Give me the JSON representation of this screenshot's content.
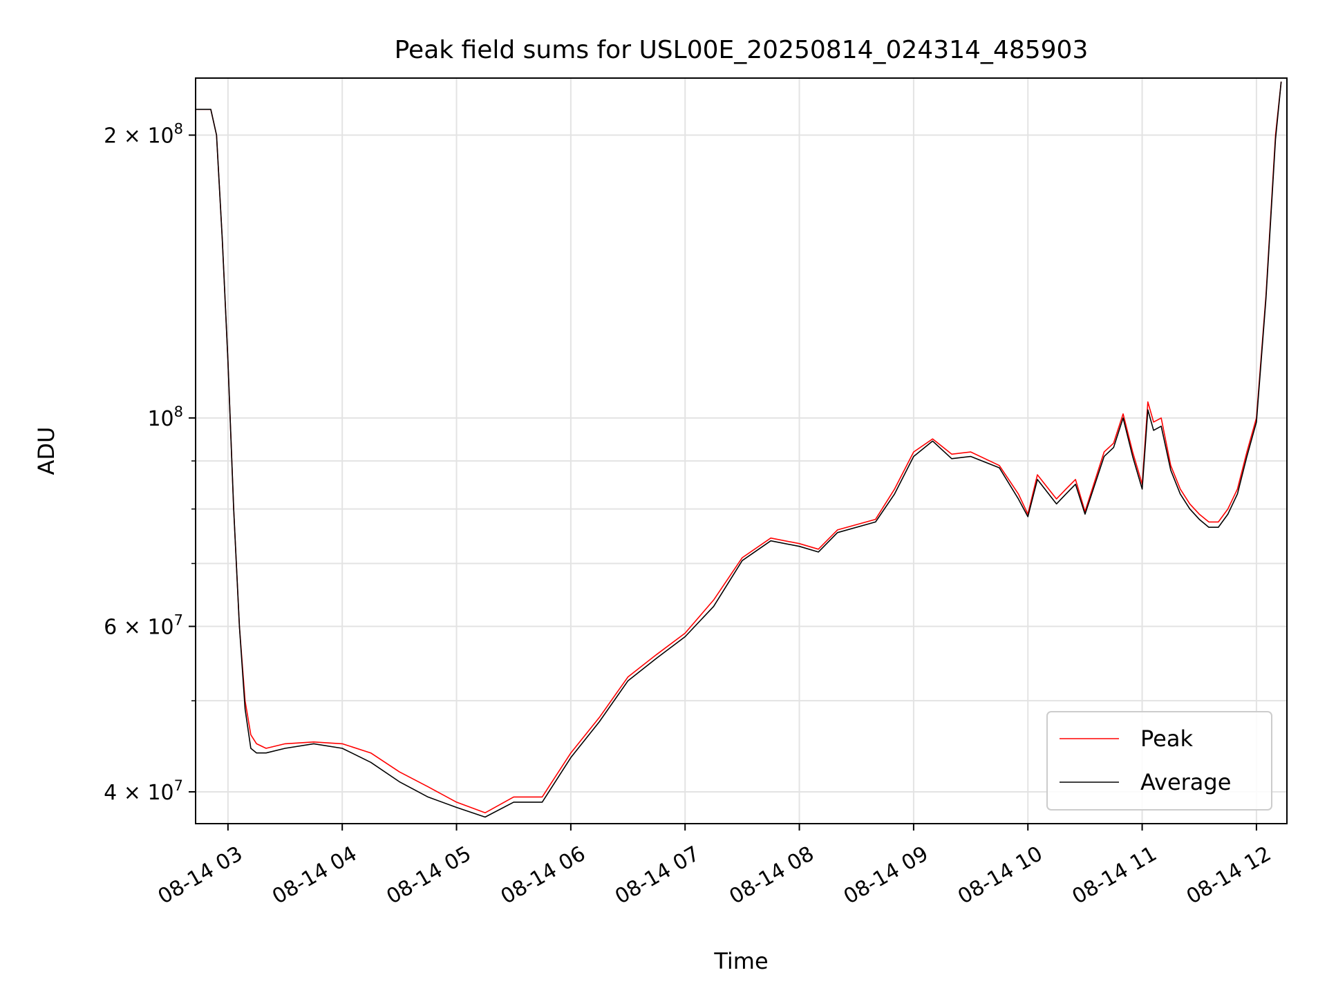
{
  "chart_data": {
    "type": "line",
    "title": "Peak field sums for USL00E_20250814_024314_485903",
    "xlabel": "Time",
    "ylabel": "ADU",
    "x_start": "08-14 02:43",
    "x_end": "08-14 12:16",
    "xlim": [
      "08-14 02:43",
      "08-14 12:16"
    ],
    "ylim": [
      37000000,
      230000000
    ],
    "yscale": "log",
    "grid": true,
    "legend_position": "lower right",
    "x_ticks": [
      "08-14 03",
      "08-14 04",
      "08-14 05",
      "08-14 06",
      "08-14 07",
      "08-14 08",
      "08-14 09",
      "08-14 10",
      "08-14 11",
      "08-14 12"
    ],
    "y_major_ticks": [
      {
        "value": 40000000,
        "mantissa": "4",
        "exponent": "7"
      },
      {
        "value": 60000000,
        "mantissa": "6",
        "exponent": "7"
      },
      {
        "value": 100000000,
        "mantissa": "",
        "exponent": "8"
      },
      {
        "value": 200000000,
        "mantissa": "2",
        "exponent": "8"
      }
    ],
    "y_minor_ticks": [
      50000000,
      70000000,
      80000000,
      90000000
    ],
    "x": [
      "08-14 02:43",
      "08-14 02:51",
      "08-14 02:54",
      "08-14 02:57",
      "08-14 03:00",
      "08-14 03:03",
      "08-14 03:06",
      "08-14 03:09",
      "08-14 03:12",
      "08-14 03:15",
      "08-14 03:20",
      "08-14 03:30",
      "08-14 03:45",
      "08-14 04:00",
      "08-14 04:15",
      "08-14 04:30",
      "08-14 04:45",
      "08-14 05:00",
      "08-14 05:15",
      "08-14 05:30",
      "08-14 05:45",
      "08-14 06:00",
      "08-14 06:15",
      "08-14 06:30",
      "08-14 06:45",
      "08-14 07:00",
      "08-14 07:15",
      "08-14 07:30",
      "08-14 07:45",
      "08-14 08:00",
      "08-14 08:10",
      "08-14 08:20",
      "08-14 08:40",
      "08-14 08:50",
      "08-14 09:00",
      "08-14 09:10",
      "08-14 09:20",
      "08-14 09:30",
      "08-14 09:45",
      "08-14 09:55",
      "08-14 10:00",
      "08-14 10:05",
      "08-14 10:15",
      "08-14 10:20",
      "08-14 10:25",
      "08-14 10:30",
      "08-14 10:40",
      "08-14 10:45",
      "08-14 10:50",
      "08-14 10:55",
      "08-14 11:00",
      "08-14 11:03",
      "08-14 11:06",
      "08-14 11:10",
      "08-14 11:15",
      "08-14 11:20",
      "08-14 11:25",
      "08-14 11:30",
      "08-14 11:35",
      "08-14 11:40",
      "08-14 11:45",
      "08-14 11:50",
      "08-14 11:55",
      "08-14 12:00",
      "08-14 12:05",
      "08-14 12:10",
      "08-14 12:13"
    ],
    "series": [
      {
        "name": "Peak",
        "color": "#ff0000",
        "values": [
          213000000,
          213000000,
          200000000,
          155000000,
          115000000,
          80000000,
          60000000,
          50000000,
          46000000,
          45000000,
          44500000,
          45000000,
          45200000,
          45000000,
          44000000,
          42000000,
          40500000,
          39000000,
          38000000,
          39500000,
          39500000,
          44000000,
          48000000,
          53000000,
          56000000,
          59000000,
          64000000,
          71000000,
          74500000,
          73500000,
          72500000,
          76000000,
          78000000,
          84000000,
          92000000,
          95000000,
          91500000,
          92000000,
          89000000,
          83000000,
          79000000,
          87000000,
          82000000,
          84000000,
          86000000,
          79500000,
          92000000,
          94000000,
          101000000,
          92000000,
          85000000,
          104000000,
          99000000,
          100000000,
          89000000,
          84000000,
          81000000,
          79000000,
          77500000,
          77500000,
          80000000,
          84000000,
          92000000,
          100000000,
          135000000,
          200000000,
          228000000
        ]
      },
      {
        "name": "Average",
        "color": "#000000",
        "values": [
          213000000,
          213000000,
          200000000,
          155000000,
          115000000,
          80000000,
          60000000,
          49000000,
          44500000,
          44000000,
          44000000,
          44500000,
          45000000,
          44500000,
          43000000,
          41000000,
          39500000,
          38500000,
          37600000,
          39000000,
          39000000,
          43500000,
          47500000,
          52500000,
          55500000,
          58500000,
          63000000,
          70500000,
          74000000,
          73000000,
          72000000,
          75500000,
          77500000,
          83000000,
          91000000,
          94500000,
          90500000,
          91000000,
          88500000,
          82000000,
          78500000,
          86000000,
          81000000,
          83000000,
          85000000,
          79000000,
          91000000,
          93000000,
          100000000,
          91000000,
          84000000,
          102000000,
          97000000,
          98000000,
          88000000,
          83000000,
          80000000,
          78000000,
          76500000,
          76500000,
          79000000,
          83000000,
          91000000,
          99000000,
          134000000,
          198000000,
          228000000
        ]
      }
    ]
  }
}
